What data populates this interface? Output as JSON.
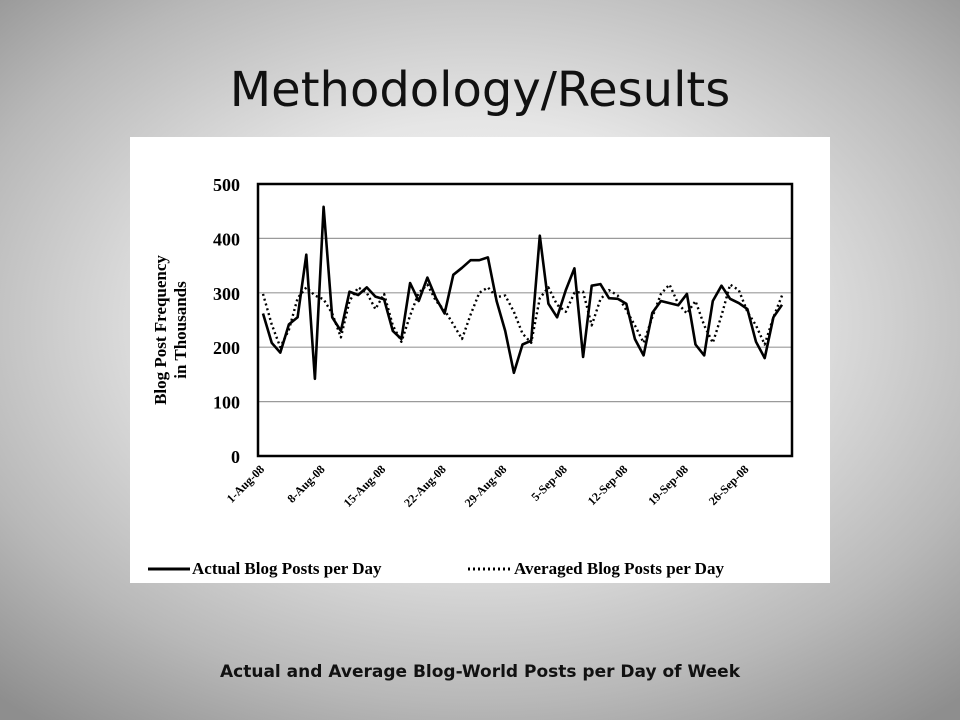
{
  "slide": {
    "title": "Methodology/Results",
    "caption": "Actual and Average Blog-World Posts per Day of Week"
  },
  "chart_data": {
    "type": "line",
    "title": "",
    "xlabel": "",
    "ylabel": "Blog Post Frequency in Thousands",
    "ylabel_lines": [
      "Blog Post Frequency",
      "in Thousands"
    ],
    "ylim": [
      0,
      500
    ],
    "yticks": [
      0,
      100,
      200,
      300,
      400,
      500
    ],
    "grid": true,
    "legend": "bottom",
    "start_date": "2008-08-01",
    "x_tick_labels": [
      "1-Aug-08",
      "8-Aug-08",
      "15-Aug-08",
      "22-Aug-08",
      "29-Aug-08",
      "5-Sep-08",
      "12-Sep-08",
      "19-Sep-08",
      "26-Sep-08"
    ],
    "x": [
      "1-Aug-08",
      "2-Aug-08",
      "3-Aug-08",
      "4-Aug-08",
      "5-Aug-08",
      "6-Aug-08",
      "7-Aug-08",
      "8-Aug-08",
      "9-Aug-08",
      "10-Aug-08",
      "11-Aug-08",
      "12-Aug-08",
      "13-Aug-08",
      "14-Aug-08",
      "15-Aug-08",
      "16-Aug-08",
      "17-Aug-08",
      "18-Aug-08",
      "19-Aug-08",
      "20-Aug-08",
      "21-Aug-08",
      "22-Aug-08",
      "23-Aug-08",
      "24-Aug-08",
      "25-Aug-08",
      "26-Aug-08",
      "27-Aug-08",
      "28-Aug-08",
      "29-Aug-08",
      "30-Aug-08",
      "31-Aug-08",
      "1-Sep-08",
      "2-Sep-08",
      "3-Sep-08",
      "4-Sep-08",
      "5-Sep-08",
      "6-Sep-08",
      "7-Sep-08",
      "8-Sep-08",
      "9-Sep-08",
      "10-Sep-08",
      "11-Sep-08",
      "12-Sep-08",
      "13-Sep-08",
      "14-Sep-08",
      "15-Sep-08",
      "16-Sep-08",
      "17-Sep-08",
      "18-Sep-08",
      "19-Sep-08",
      "20-Sep-08",
      "21-Sep-08",
      "22-Sep-08",
      "23-Sep-08",
      "24-Sep-08",
      "25-Sep-08",
      "26-Sep-08",
      "27-Sep-08",
      "28-Sep-08",
      "29-Sep-08",
      "30-Sep-08"
    ],
    "series": [
      {
        "name": "Actual Blog Posts per Day",
        "style": "solid",
        "color": "#000000",
        "values": [
          262,
          208,
          190,
          242,
          255,
          370,
          142,
          458,
          255,
          230,
          302,
          296,
          310,
          293,
          288,
          230,
          215,
          318,
          285,
          328,
          290,
          262,
          333,
          346,
          360,
          360,
          365,
          285,
          230,
          153,
          205,
          212,
          405,
          280,
          255,
          305,
          345,
          182,
          313,
          316,
          290,
          289,
          280,
          215,
          185,
          263,
          285,
          281,
          277,
          298,
          205,
          185,
          285,
          313,
          289,
          281,
          270,
          210,
          180,
          255,
          278
        ]
      },
      {
        "name": "Averaged Blog Posts per Day",
        "style": "dotted",
        "color": "#000000",
        "values": [
          298,
          242,
          200,
          232,
          290,
          310,
          295,
          288,
          262,
          218,
          285,
          310,
          300,
          270,
          298,
          240,
          210,
          258,
          300,
          315,
          285,
          268,
          242,
          215,
          260,
          300,
          310,
          292,
          295,
          265,
          225,
          208,
          290,
          310,
          278,
          265,
          300,
          302,
          240,
          288,
          305,
          295,
          268,
          240,
          208,
          255,
          298,
          315,
          280,
          262,
          285,
          240,
          208,
          258,
          315,
          305,
          265,
          240,
          205,
          255,
          295
        ]
      }
    ]
  }
}
